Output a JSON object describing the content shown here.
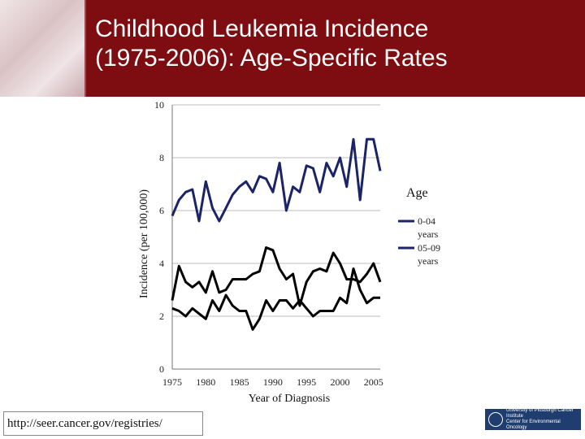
{
  "slide": {
    "title_line1": "Childhood Leukemia Incidence",
    "title_line2": "(1975-2006): Age-Specific Rates",
    "source_text": "http://seer.cancer.gov/registries/",
    "logo_text_line1": "University of Pittsburgh Cancer Institute",
    "logo_text_line2": "Center for Environmental Oncology"
  },
  "colors": {
    "banner": "#7d0d10",
    "series_0_04": "#1a2466",
    "series_05_09": "#000000"
  },
  "chart_data": {
    "type": "line",
    "title": "",
    "xlabel": "Year of Diagnosis",
    "ylabel": "Incidence (per 100,000)",
    "xlim": [
      1975,
      2006
    ],
    "ylim": [
      0,
      10
    ],
    "x_ticks": [
      1975,
      1980,
      1985,
      1990,
      1995,
      2000,
      2005
    ],
    "y_ticks": [
      0,
      2,
      4,
      6,
      8,
      10
    ],
    "grid": "horizontal",
    "legend_title": "Age",
    "legend_position": "right",
    "x": [
      1975,
      1976,
      1977,
      1978,
      1979,
      1980,
      1981,
      1982,
      1983,
      1984,
      1985,
      1986,
      1987,
      1988,
      1989,
      1990,
      1991,
      1992,
      1993,
      1994,
      1995,
      1996,
      1997,
      1998,
      1999,
      2000,
      2001,
      2002,
      2003,
      2004,
      2005,
      2006
    ],
    "series": [
      {
        "name": "0-04 years",
        "values": [
          5.8,
          6.4,
          6.7,
          6.8,
          5.6,
          7.1,
          6.1,
          5.6,
          6.1,
          6.6,
          6.9,
          7.1,
          6.7,
          7.3,
          7.2,
          6.7,
          7.8,
          6.0,
          6.9,
          6.7,
          7.7,
          7.6,
          6.7,
          7.8,
          7.3,
          8.0,
          6.9,
          8.7,
          6.4,
          8.7,
          8.7,
          7.5
        ]
      },
      {
        "name": "05-09 years",
        "values": [
          2.6,
          3.9,
          3.3,
          3.1,
          3.3,
          2.9,
          3.7,
          2.9,
          3.0,
          3.4,
          3.4,
          3.4,
          3.6,
          3.7,
          4.6,
          4.5,
          3.8,
          3.4,
          3.6,
          2.4,
          3.3,
          3.7,
          3.8,
          3.7,
          4.4,
          4.0,
          3.4,
          3.4,
          3.3,
          3.6,
          4.0,
          3.3
        ]
      },
      {
        "name": "",
        "values": [
          2.3,
          2.2,
          2.0,
          2.3,
          2.1,
          1.9,
          2.6,
          2.2,
          2.8,
          2.4,
          2.2,
          2.2,
          1.5,
          1.9,
          2.6,
          2.2,
          2.6,
          2.6,
          2.3,
          2.6,
          2.3,
          2.0,
          2.2,
          2.2,
          2.2,
          2.7,
          2.5,
          3.8,
          3.0,
          2.5,
          2.7,
          2.7
        ]
      }
    ]
  }
}
